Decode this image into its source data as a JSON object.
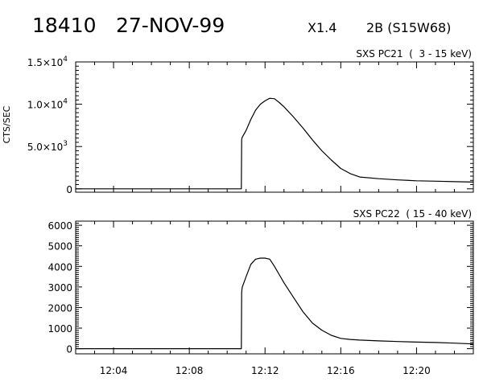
{
  "header": {
    "event_id": "18410",
    "date": "27-NOV-99",
    "flare_class": "X1.4",
    "optical_class": "2B (S15W68)"
  },
  "chart_data": [
    {
      "type": "line",
      "title": "SXS PC21  (  3 - 15 keV)",
      "ylabel": "CTS/SEC",
      "xlabel": "",
      "x_unit": "UT (hh:mm)",
      "xlim": [
        "12:02:00",
        "12:23:00"
      ],
      "ylim": [
        -400,
        15000
      ],
      "yticks": [
        {
          "value": 0,
          "mantissa": "0",
          "exp": ""
        },
        {
          "value": 5000,
          "mantissa": "5.0×10",
          "exp": "3"
        },
        {
          "value": 10000,
          "mantissa": "1.0×10",
          "exp": "4"
        },
        {
          "value": 15000,
          "mantissa": "1.5×10",
          "exp": "4"
        }
      ],
      "xticks": [
        "12:04",
        "12:08",
        "12:12",
        "12:16",
        "12:20"
      ],
      "series": [
        {
          "x": [
            "12:02:00",
            "12:10:45",
            "12:10:46",
            "12:10:47",
            "12:10:48",
            "12:11:00",
            "12:11:15",
            "12:11:30",
            "12:11:45",
            "12:12:00",
            "12:12:15",
            "12:12:30",
            "12:12:45",
            "12:13:00",
            "12:13:30",
            "12:14:00",
            "12:14:30",
            "12:15:00",
            "12:15:30",
            "12:16:00",
            "12:16:30",
            "12:17:00",
            "12:18:00",
            "12:19:00",
            "12:20:00",
            "12:21:00",
            "12:22:00",
            "12:23:00"
          ],
          "y": [
            0,
            0,
            5800,
            6000,
            6100,
            6900,
            8200,
            9300,
            10000,
            10400,
            10700,
            10650,
            10200,
            9700,
            8500,
            7200,
            5800,
            4500,
            3400,
            2400,
            1800,
            1400,
            1200,
            1050,
            950,
            900,
            850,
            800
          ]
        }
      ]
    },
    {
      "type": "line",
      "title": "SXS PC22  ( 15 - 40 keV)",
      "ylabel": "",
      "xlabel": "",
      "x_unit": "UT (hh:mm)",
      "xlim": [
        "12:02:00",
        "12:23:00"
      ],
      "ylim": [
        -250,
        6200
      ],
      "yticks": [
        {
          "value": 0,
          "mantissa": "0",
          "exp": ""
        },
        {
          "value": 1000,
          "mantissa": "1000",
          "exp": ""
        },
        {
          "value": 2000,
          "mantissa": "2000",
          "exp": ""
        },
        {
          "value": 3000,
          "mantissa": "3000",
          "exp": ""
        },
        {
          "value": 4000,
          "mantissa": "4000",
          "exp": ""
        },
        {
          "value": 5000,
          "mantissa": "5000",
          "exp": ""
        },
        {
          "value": 6000,
          "mantissa": "6000",
          "exp": ""
        }
      ],
      "xticks": [
        "12:04",
        "12:08",
        "12:12",
        "12:16",
        "12:20"
      ],
      "series": [
        {
          "x": [
            "12:02:00",
            "12:10:45",
            "12:10:46",
            "12:10:47",
            "12:10:48",
            "12:11:00",
            "12:11:15",
            "12:11:30",
            "12:11:45",
            "12:12:00",
            "12:12:15",
            "12:12:30",
            "12:12:45",
            "12:13:00",
            "12:13:30",
            "12:14:00",
            "12:14:30",
            "12:15:00",
            "12:15:30",
            "12:16:00",
            "12:16:30",
            "12:17:00",
            "12:18:00",
            "12:19:00",
            "12:20:00",
            "12:21:00",
            "12:22:00",
            "12:23:00"
          ],
          "y": [
            0,
            0,
            2700,
            2900,
            3000,
            3500,
            4100,
            4350,
            4400,
            4400,
            4350,
            4000,
            3600,
            3200,
            2500,
            1800,
            1250,
            900,
            650,
            500,
            450,
            420,
            380,
            350,
            320,
            300,
            270,
            230
          ]
        }
      ]
    }
  ]
}
